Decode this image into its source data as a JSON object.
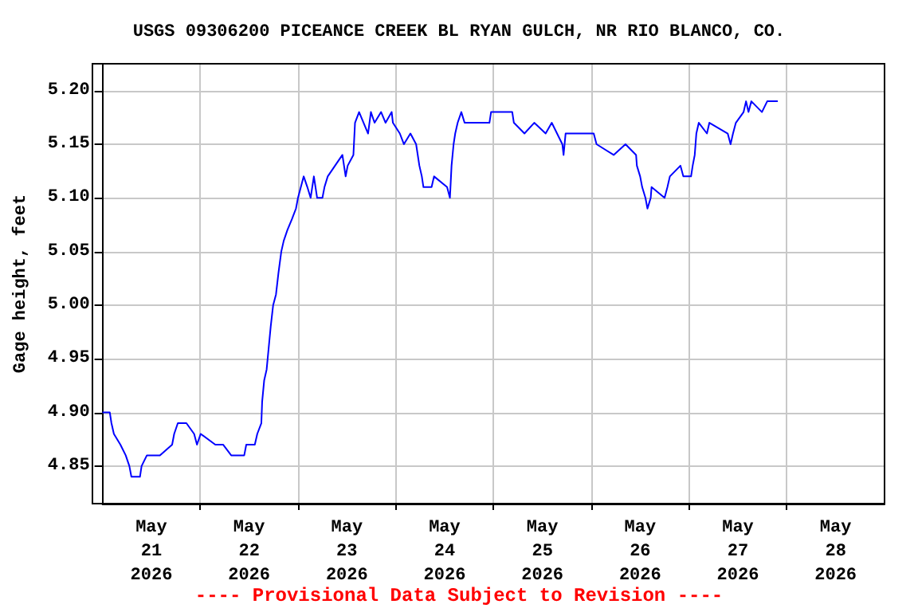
{
  "chart_data": {
    "type": "line",
    "title": "USGS 09306200 PICEANCE CREEK BL RYAN GULCH, NR RIO BLANCO, CO.",
    "ylabel": "Gage height, feet",
    "annotations": [
      "---- Provisional Data Subject to Revision ----"
    ],
    "x": [
      "2026-05-21T00:00",
      "2026-05-21T01:48",
      "2026-05-21T02:12",
      "2026-05-21T02:48",
      "2026-05-21T04:24",
      "2026-05-21T05:42",
      "2026-05-21T06:36",
      "2026-05-21T07:06",
      "2026-05-21T09:12",
      "2026-05-21T09:36",
      "2026-05-21T10:54",
      "2026-05-21T14:06",
      "2026-05-21T17:06",
      "2026-05-21T17:36",
      "2026-05-21T18:30",
      "2026-05-21T20:36",
      "2026-05-21T22:30",
      "2026-05-21T23:12",
      "2026-05-22T00:06",
      "2026-05-22T03:42",
      "2026-05-22T05:36",
      "2026-05-22T07:36",
      "2026-05-22T10:48",
      "2026-05-22T11:18",
      "2026-05-22T13:24",
      "2026-05-22T14:00",
      "2026-05-22T15:00",
      "2026-05-22T15:12",
      "2026-05-22T15:42",
      "2026-05-22T16:18",
      "2026-05-22T16:48",
      "2026-05-22T17:18",
      "2026-05-22T17:54",
      "2026-05-22T18:36",
      "2026-05-22T19:12",
      "2026-05-22T19:54",
      "2026-05-22T20:30",
      "2026-05-22T21:24",
      "2026-05-22T22:30",
      "2026-05-22T23:30",
      "2026-05-23T00:00",
      "2026-05-23T00:42",
      "2026-05-23T01:24",
      "2026-05-23T02:18",
      "2026-05-23T03:06",
      "2026-05-23T03:54",
      "2026-05-23T04:42",
      "2026-05-23T06:00",
      "2026-05-23T06:30",
      "2026-05-23T07:18",
      "2026-05-23T09:06",
      "2026-05-23T10:54",
      "2026-05-23T11:42",
      "2026-05-23T12:12",
      "2026-05-23T13:36",
      "2026-05-23T14:00",
      "2026-05-23T15:00",
      "2026-05-23T17:12",
      "2026-05-23T17:54",
      "2026-05-23T18:48",
      "2026-05-23T20:24",
      "2026-05-23T21:30",
      "2026-05-23T23:00",
      "2026-05-23T23:18",
      "2026-05-24T01:00",
      "2026-05-24T02:00",
      "2026-05-24T03:36",
      "2026-05-24T05:00",
      "2026-05-24T05:48",
      "2026-05-24T06:24",
      "2026-05-24T06:48",
      "2026-05-24T08:48",
      "2026-05-24T09:24",
      "2026-05-24T12:36",
      "2026-05-24T13:18",
      "2026-05-24T13:42",
      "2026-05-24T14:12",
      "2026-05-24T14:36",
      "2026-05-24T15:12",
      "2026-05-24T16:06",
      "2026-05-24T16:54",
      "2026-05-24T23:00",
      "2026-05-24T23:24",
      "2026-05-25T04:36",
      "2026-05-25T05:00",
      "2026-05-25T07:36",
      "2026-05-25T10:00",
      "2026-05-25T12:48",
      "2026-05-25T14:18",
      "2026-05-25T16:54",
      "2026-05-25T17:12",
      "2026-05-25T17:42",
      "2026-05-26T00:36",
      "2026-05-26T01:18",
      "2026-05-26T05:30",
      "2026-05-26T08:24",
      "2026-05-26T11:00",
      "2026-05-26T11:12",
      "2026-05-26T12:00",
      "2026-05-26T12:30",
      "2026-05-26T13:18",
      "2026-05-26T13:48",
      "2026-05-26T14:36",
      "2026-05-26T14:48",
      "2026-05-26T18:00",
      "2026-05-26T18:42",
      "2026-05-26T19:18",
      "2026-05-26T21:54",
      "2026-05-26T22:36",
      "2026-05-27T00:30",
      "2026-05-27T00:54",
      "2026-05-27T01:24",
      "2026-05-27T01:48",
      "2026-05-27T02:24",
      "2026-05-27T04:24",
      "2026-05-27T05:00",
      "2026-05-27T09:30",
      "2026-05-27T10:12",
      "2026-05-27T10:48",
      "2026-05-27T11:30",
      "2026-05-27T13:24",
      "2026-05-27T14:00",
      "2026-05-27T14:36",
      "2026-05-27T15:18",
      "2026-05-27T17:54",
      "2026-05-27T19:12",
      "2026-05-27T21:48"
    ],
    "series": [
      {
        "color": "#0000ff",
        "values": [
          4.9,
          4.9,
          4.89,
          4.88,
          4.87,
          4.86,
          4.85,
          4.84,
          4.84,
          4.85,
          4.86,
          4.86,
          4.87,
          4.88,
          4.89,
          4.89,
          4.88,
          4.87,
          4.88,
          4.87,
          4.87,
          4.86,
          4.86,
          4.87,
          4.87,
          4.88,
          4.89,
          4.91,
          4.93,
          4.94,
          4.96,
          4.98,
          5.0,
          5.01,
          5.03,
          5.05,
          5.06,
          5.07,
          5.08,
          5.09,
          5.1,
          5.11,
          5.12,
          5.11,
          5.1,
          5.12,
          5.1,
          5.1,
          5.11,
          5.12,
          5.13,
          5.14,
          5.12,
          5.13,
          5.14,
          5.17,
          5.18,
          5.16,
          5.18,
          5.17,
          5.18,
          5.17,
          5.18,
          5.17,
          5.16,
          5.15,
          5.16,
          5.15,
          5.13,
          5.12,
          5.11,
          5.11,
          5.12,
          5.11,
          5.1,
          5.13,
          5.15,
          5.16,
          5.17,
          5.18,
          5.17,
          5.17,
          5.18,
          5.18,
          5.17,
          5.16,
          5.17,
          5.16,
          5.17,
          5.15,
          5.14,
          5.16,
          5.16,
          5.15,
          5.14,
          5.15,
          5.14,
          5.13,
          5.12,
          5.11,
          5.1,
          5.09,
          5.1,
          5.11,
          5.1,
          5.11,
          5.12,
          5.13,
          5.12,
          5.12,
          5.13,
          5.14,
          5.16,
          5.17,
          5.16,
          5.17,
          5.16,
          5.15,
          5.16,
          5.17,
          5.18,
          5.19,
          5.18,
          5.19,
          5.18,
          5.19,
          5.19
        ]
      }
    ],
    "xlim": [
      "2026-05-21T00:00",
      "2026-05-29T00:00"
    ],
    "xticks": [
      {
        "value": "2026-05-21T12:00",
        "label": "May\n21\n2026"
      },
      {
        "value": "2026-05-22T00:00",
        "label": null
      },
      {
        "value": "2026-05-22T12:00",
        "label": "May\n22\n2026"
      },
      {
        "value": "2026-05-23T00:00",
        "label": null
      },
      {
        "value": "2026-05-23T12:00",
        "label": "May\n23\n2026"
      },
      {
        "value": "2026-05-24T00:00",
        "label": null
      },
      {
        "value": "2026-05-24T12:00",
        "label": "May\n24\n2026"
      },
      {
        "value": "2026-05-25T00:00",
        "label": null
      },
      {
        "value": "2026-05-25T12:00",
        "label": "May\n25\n2026"
      },
      {
        "value": "2026-05-26T00:00",
        "label": null
      },
      {
        "value": "2026-05-26T12:00",
        "label": "May\n26\n2026"
      },
      {
        "value": "2026-05-27T00:00",
        "label": null
      },
      {
        "value": "2026-05-27T12:00",
        "label": "May\n27\n2026"
      },
      {
        "value": "2026-05-28T00:00",
        "label": null
      },
      {
        "value": "2026-05-28T12:00",
        "label": "May\n28\n2026"
      }
    ],
    "ylim": [
      4.815,
      5.225
    ],
    "yticks": [
      {
        "value": 4.85,
        "label": "4.85"
      },
      {
        "value": 4.9,
        "label": "4.90"
      },
      {
        "value": 4.95,
        "label": "4.95"
      },
      {
        "value": 5.0,
        "label": "5.00"
      },
      {
        "value": 5.05,
        "label": "5.05"
      },
      {
        "value": 5.1,
        "label": "5.10"
      },
      {
        "value": 5.15,
        "label": "5.15"
      },
      {
        "value": 5.2,
        "label": "5.20"
      }
    ],
    "grid": true
  }
}
